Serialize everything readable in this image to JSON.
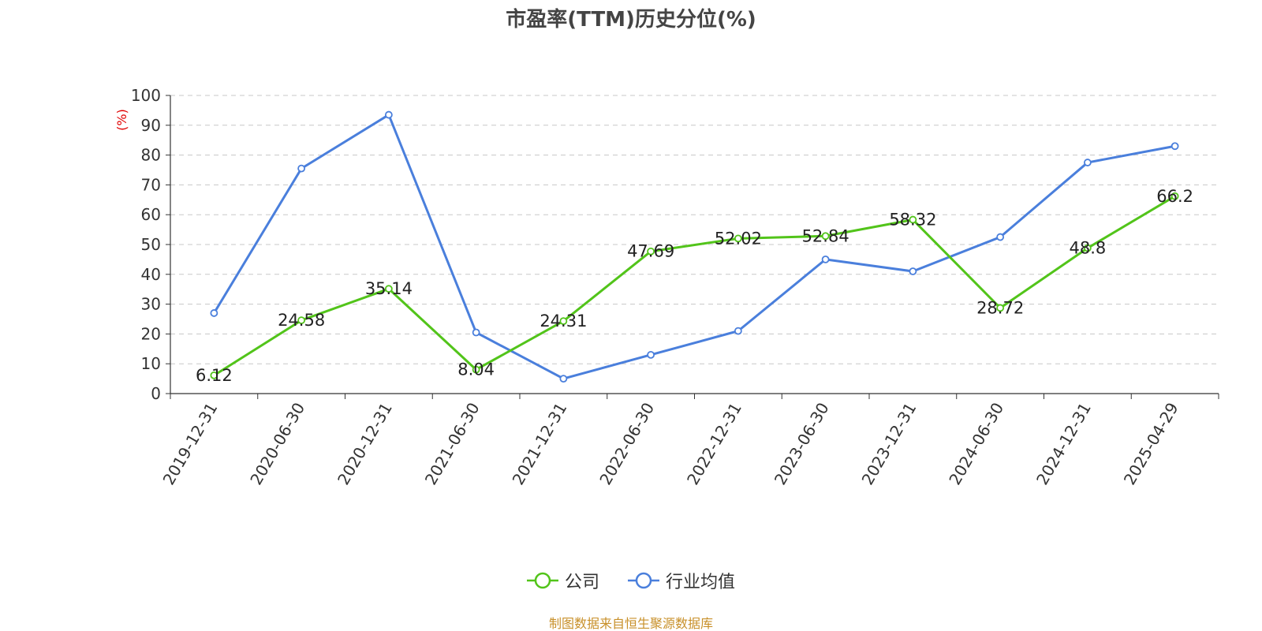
{
  "chart_data": {
    "type": "line",
    "title": "市盈率(TTM)历史分位(%)",
    "ylabel": "(%)",
    "ylim": [
      0,
      100
    ],
    "yticks": [
      0,
      10,
      20,
      30,
      40,
      50,
      60,
      70,
      80,
      90,
      100
    ],
    "categories": [
      "2019-12-31",
      "2020-06-30",
      "2020-12-31",
      "2021-06-30",
      "2021-12-31",
      "2022-06-30",
      "2022-12-31",
      "2023-06-30",
      "2023-12-31",
      "2024-06-30",
      "2024-12-31",
      "2025-04-29"
    ],
    "series": [
      {
        "name": "公司",
        "color": "#52c41a",
        "values": [
          6.12,
          24.58,
          35.14,
          8.04,
          24.31,
          47.69,
          52.02,
          52.84,
          58.32,
          28.72,
          48.8,
          66.2
        ],
        "labels": [
          "6.12",
          "24.58",
          "35.14",
          "8.04",
          "24.31",
          "47.69",
          "52.02",
          "52.84",
          "58.32",
          "28.72",
          "48.8",
          "66.2"
        ]
      },
      {
        "name": "行业均值",
        "color": "#4a7fdc",
        "values": [
          27.0,
          75.5,
          93.5,
          20.5,
          5.0,
          13.0,
          21.0,
          45.0,
          41.0,
          52.5,
          77.5,
          83.0
        ]
      }
    ],
    "grid": true,
    "legend_position": "bottom-center"
  },
  "source": "制图数据来自恒生聚源数据库"
}
